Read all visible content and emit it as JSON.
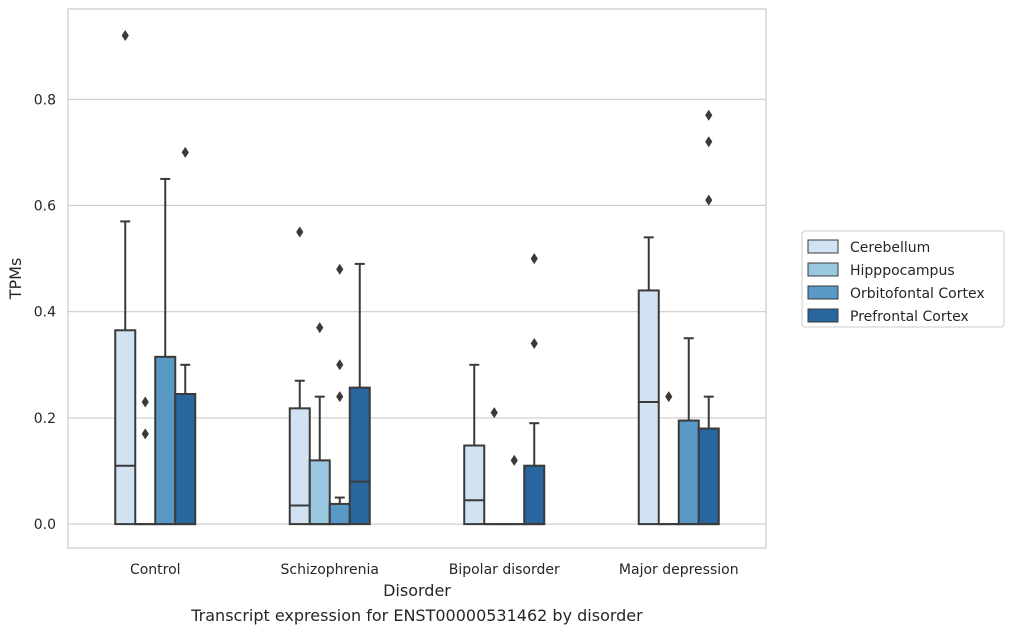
{
  "caption": "Transcript expression for ENST00000531462 by disorder",
  "chart_data": {
    "type": "box",
    "xlabel": "Disorder",
    "ylabel": "TPMs",
    "ylim": [
      -0.045,
      0.97
    ],
    "yticks": [
      0.0,
      0.2,
      0.4,
      0.6,
      0.8
    ],
    "ytick_labels": [
      "0.0",
      "0.2",
      "0.4",
      "0.6",
      "0.8"
    ],
    "grid": "horizontal",
    "legend_position": "right",
    "categories": [
      "Control",
      "Schizophrenia",
      "Bipolar disorder",
      "Major depression"
    ],
    "series": [
      {
        "name": "Cerebellum",
        "color": "#d1e2f2",
        "boxes": [
          {
            "q1": 0.0,
            "median": 0.11,
            "q3": 0.365,
            "whislo": 0.0,
            "whishi": 0.57,
            "fliers": [
              0.92
            ]
          },
          {
            "q1": 0.0,
            "median": 0.035,
            "q3": 0.218,
            "whislo": 0.0,
            "whishi": 0.27,
            "fliers": [
              0.55
            ]
          },
          {
            "q1": 0.0,
            "median": 0.045,
            "q3": 0.148,
            "whislo": 0.0,
            "whishi": 0.3,
            "fliers": []
          },
          {
            "q1": 0.0,
            "median": 0.23,
            "q3": 0.44,
            "whislo": 0.0,
            "whishi": 0.54,
            "fliers": []
          }
        ]
      },
      {
        "name": "Hipppocampus",
        "color": "#9ac8e0",
        "boxes": [
          {
            "q1": 0.0,
            "median": 0.0,
            "q3": 0.0,
            "whislo": 0.0,
            "whishi": 0.0,
            "fliers": [
              0.17,
              0.23
            ]
          },
          {
            "q1": 0.0,
            "median": 0.0,
            "q3": 0.12,
            "whislo": 0.0,
            "whishi": 0.24,
            "fliers": [
              0.37
            ]
          },
          {
            "q1": 0.0,
            "median": 0.0,
            "q3": 0.0,
            "whislo": 0.0,
            "whishi": 0.0,
            "fliers": [
              0.21
            ]
          },
          {
            "q1": 0.0,
            "median": 0.0,
            "q3": 0.0,
            "whislo": 0.0,
            "whishi": 0.0,
            "fliers": [
              0.24
            ]
          }
        ]
      },
      {
        "name": "Orbitofontal Cortex",
        "color": "#5899c6",
        "boxes": [
          {
            "q1": 0.0,
            "median": 0.0,
            "q3": 0.315,
            "whislo": 0.0,
            "whishi": 0.65,
            "fliers": []
          },
          {
            "q1": 0.0,
            "median": 0.0,
            "q3": 0.038,
            "whislo": 0.0,
            "whishi": 0.05,
            "fliers": [
              0.24,
              0.3,
              0.48
            ]
          },
          {
            "q1": 0.0,
            "median": 0.0,
            "q3": 0.0,
            "whislo": 0.0,
            "whishi": 0.0,
            "fliers": [
              0.12
            ]
          },
          {
            "q1": 0.0,
            "median": 0.0,
            "q3": 0.195,
            "whislo": 0.0,
            "whishi": 0.35,
            "fliers": []
          }
        ]
      },
      {
        "name": "Prefrontal Cortex",
        "color": "#2866a0",
        "boxes": [
          {
            "q1": 0.0,
            "median": 0.0,
            "q3": 0.245,
            "whislo": 0.0,
            "whishi": 0.3,
            "fliers": [
              0.7
            ]
          },
          {
            "q1": 0.0,
            "median": 0.08,
            "q3": 0.257,
            "whislo": 0.0,
            "whishi": 0.49,
            "fliers": []
          },
          {
            "q1": 0.0,
            "median": 0.0,
            "q3": 0.11,
            "whislo": 0.0,
            "whishi": 0.19,
            "fliers": [
              0.34,
              0.5
            ]
          },
          {
            "q1": 0.0,
            "median": 0.0,
            "q3": 0.18,
            "whislo": 0.0,
            "whishi": 0.24,
            "fliers": [
              0.61,
              0.72,
              0.77
            ]
          }
        ]
      }
    ]
  }
}
